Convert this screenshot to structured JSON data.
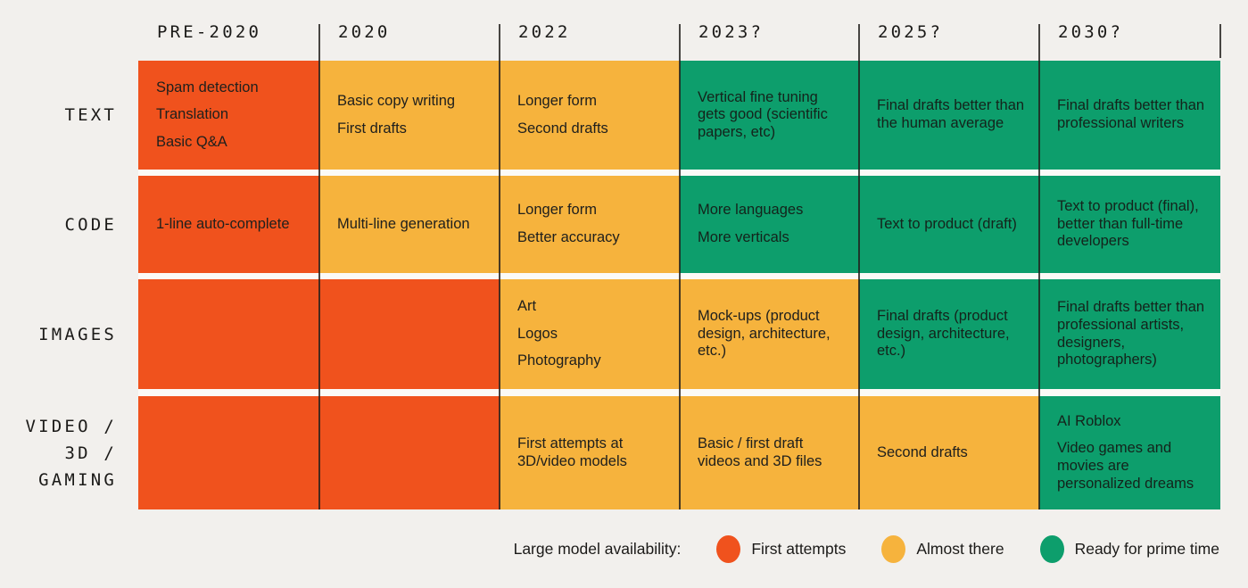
{
  "colors": {
    "background": "#F2F0ED",
    "row_gap": "#FBFAF7",
    "orange": "#F0521D",
    "yellow": "#F6B33D",
    "green": "#0D9E6C",
    "text": "#20201D"
  },
  "legend": {
    "label": "Large model availability:",
    "items": [
      {
        "status": "orange",
        "name": "First attempts"
      },
      {
        "status": "yellow",
        "name": "Almost there"
      },
      {
        "status": "green",
        "name": "Ready for prime time"
      }
    ]
  },
  "chart_data": {
    "type": "table",
    "title": "Large model availability timeline by modality",
    "columns": [
      "PRE-2020",
      "2020",
      "2022",
      "2023?",
      "2025?",
      "2030?"
    ],
    "status_meaning": {
      "orange": "First attempts",
      "yellow": "Almost there",
      "green": "Ready for prime time"
    },
    "rows": [
      {
        "label": "TEXT",
        "label_lines": [
          "TEXT"
        ],
        "cells": [
          {
            "status": "orange",
            "items": [
              "Spam detection",
              "Translation",
              "Basic Q&A"
            ]
          },
          {
            "status": "yellow",
            "items": [
              "Basic copy writing",
              "First drafts"
            ]
          },
          {
            "status": "yellow",
            "items": [
              "Longer form",
              "Second drafts"
            ]
          },
          {
            "status": "green",
            "items": [
              "Vertical fine tuning gets good (scientific papers, etc)"
            ]
          },
          {
            "status": "green",
            "items": [
              "Final drafts better than the human average"
            ]
          },
          {
            "status": "green",
            "items": [
              "Final drafts better than professional writers"
            ]
          }
        ]
      },
      {
        "label": "CODE",
        "label_lines": [
          "CODE"
        ],
        "cells": [
          {
            "status": "orange",
            "items": [
              "1-line auto-complete"
            ]
          },
          {
            "status": "yellow",
            "items": [
              "Multi-line generation"
            ]
          },
          {
            "status": "yellow",
            "items": [
              "Longer form",
              "Better accuracy"
            ]
          },
          {
            "status": "green",
            "items": [
              "More languages",
              "More verticals"
            ]
          },
          {
            "status": "green",
            "items": [
              "Text to product (draft)"
            ]
          },
          {
            "status": "green",
            "items": [
              "Text to product (final), better than full-time developers"
            ]
          }
        ]
      },
      {
        "label": "IMAGES",
        "label_lines": [
          "IMAGES"
        ],
        "cells": [
          {
            "status": "orange",
            "items": []
          },
          {
            "status": "orange",
            "items": []
          },
          {
            "status": "yellow",
            "items": [
              "Art",
              "Logos",
              "Photography"
            ]
          },
          {
            "status": "yellow",
            "items": [
              "Mock-ups (product design, architecture, etc.)"
            ]
          },
          {
            "status": "green",
            "items": [
              "Final drafts (product design, architecture, etc.)"
            ]
          },
          {
            "status": "green",
            "items": [
              "Final drafts better than professional artists, designers, photographers)"
            ]
          }
        ]
      },
      {
        "label": "VIDEO / 3D / GAMING",
        "label_lines": [
          "VIDEO /",
          "3D /",
          "GAMING"
        ],
        "cells": [
          {
            "status": "orange",
            "items": []
          },
          {
            "status": "orange",
            "items": []
          },
          {
            "status": "yellow",
            "items": [
              "First attempts at 3D/video models"
            ]
          },
          {
            "status": "yellow",
            "items": [
              "Basic / first draft videos and 3D files"
            ]
          },
          {
            "status": "yellow",
            "items": [
              "Second drafts"
            ]
          },
          {
            "status": "green",
            "items": [
              "AI Roblox",
              "Video games and movies are personalized dreams"
            ]
          }
        ]
      }
    ]
  }
}
